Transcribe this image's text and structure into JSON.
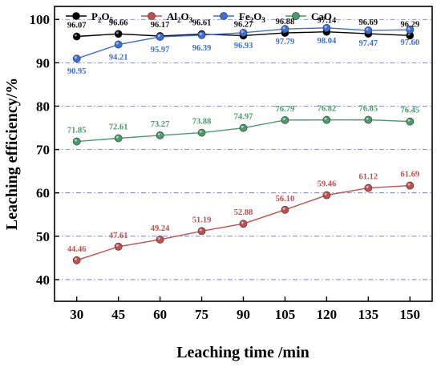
{
  "chart_data": {
    "type": "line",
    "title": "",
    "xlabel": "Leaching time /min",
    "ylabel": "Leaching efficiency/%",
    "x": [
      30,
      45,
      60,
      75,
      90,
      105,
      120,
      135,
      150
    ],
    "xlim": [
      22,
      158
    ],
    "ylim": [
      35,
      103
    ],
    "yticks": [
      40,
      50,
      60,
      70,
      80,
      90,
      100
    ],
    "grid": "horizontal dash-dot",
    "legend_position": "top",
    "series": [
      {
        "name": "P2O5",
        "legend": {
          "pre": "P",
          "sub1": "2",
          "mid": "O",
          "sub2": "5"
        },
        "color": "#000000",
        "values": [
          96.07,
          96.66,
          96.17,
          96.61,
          96.27,
          96.88,
          97.14,
          96.69,
          96.29
        ],
        "labels": [
          "96.07",
          "96.66",
          "96.17",
          "96.61",
          "96.27",
          "96.88",
          "97.14",
          "96.69",
          "96.29"
        ],
        "label_position": "above"
      },
      {
        "name": "Al2O3",
        "legend": {
          "pre": "Al",
          "sub1": "2",
          "mid": "O",
          "sub2": "3"
        },
        "color": "#c0504d",
        "values": [
          44.46,
          47.61,
          49.24,
          51.19,
          52.88,
          56.1,
          59.46,
          61.12,
          61.69
        ],
        "labels": [
          "44.46",
          "47.61",
          "49.24",
          "51.19",
          "52.88",
          "56.10",
          "59.46",
          "61.12",
          "61.69"
        ],
        "label_position": "above"
      },
      {
        "name": "Fe2O3",
        "legend": {
          "pre": "Fe",
          "sub1": "2",
          "mid": "O",
          "sub2": "3"
        },
        "color": "#3b6fd6",
        "values": [
          90.95,
          94.21,
          95.97,
          96.39,
          96.93,
          97.79,
          98.04,
          97.47,
          97.6
        ],
        "labels": [
          "90.95",
          "94.21",
          "95.97",
          "96.39",
          "96.93",
          "97.79",
          "98.04",
          "97.47",
          "97.60"
        ],
        "label_position": "below"
      },
      {
        "name": "CaO",
        "legend": {
          "pre": "CaO",
          "sub1": "",
          "mid": "",
          "sub2": ""
        },
        "color": "#4a9a6a",
        "values": [
          71.85,
          72.61,
          73.27,
          73.88,
          74.97,
          76.79,
          76.82,
          76.85,
          76.45
        ],
        "labels": [
          "71.85",
          "72.61",
          "73.27",
          "73.88",
          "74.97",
          "76.79",
          "76.82",
          "76.85",
          "76.45"
        ],
        "label_position": "above"
      }
    ]
  }
}
